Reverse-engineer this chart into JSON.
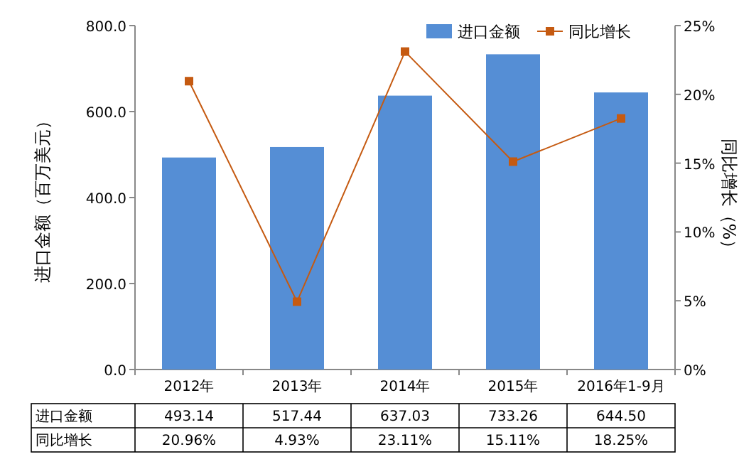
{
  "chart_data": {
    "type": "bar",
    "categories": [
      "2012年",
      "2013年",
      "2014年",
      "2015年",
      "2016年1-9月"
    ],
    "ylabel": "进口金额（百万美元）",
    "y2label": "同比增长（%）",
    "ylim": [
      0,
      800
    ],
    "yticks": [
      {
        "value": 0,
        "label": "0.0"
      },
      {
        "value": 200,
        "label": "200.0"
      },
      {
        "value": 400,
        "label": "400.0"
      },
      {
        "value": 600,
        "label": "600.0"
      },
      {
        "value": 800,
        "label": "800.0"
      }
    ],
    "y2lim": [
      0,
      25
    ],
    "y2ticks": [
      {
        "value": 0,
        "label": "0%"
      },
      {
        "value": 5,
        "label": "5%"
      },
      {
        "value": 10,
        "label": "10%"
      },
      {
        "value": 15,
        "label": "15%"
      },
      {
        "value": 20,
        "label": "20%"
      },
      {
        "value": 25,
        "label": "25%"
      }
    ],
    "legend": "top right",
    "marker": "square",
    "series": [
      {
        "name": "进口金额",
        "color": "#558ed5",
        "values": [
          493.14,
          517.44,
          637.03,
          733.26,
          644.5
        ],
        "value_labels": [
          "493.14",
          "517.44",
          "637.03",
          "733.26",
          "644.50"
        ]
      },
      {
        "name": "同比增长",
        "type": "line",
        "axis": "y2",
        "color": "#c55a11",
        "values": [
          20.96,
          4.93,
          23.11,
          15.11,
          18.25
        ],
        "value_labels": [
          "20.96%",
          "4.93%",
          "23.11%",
          "15.11%",
          "18.25%"
        ]
      }
    ]
  }
}
